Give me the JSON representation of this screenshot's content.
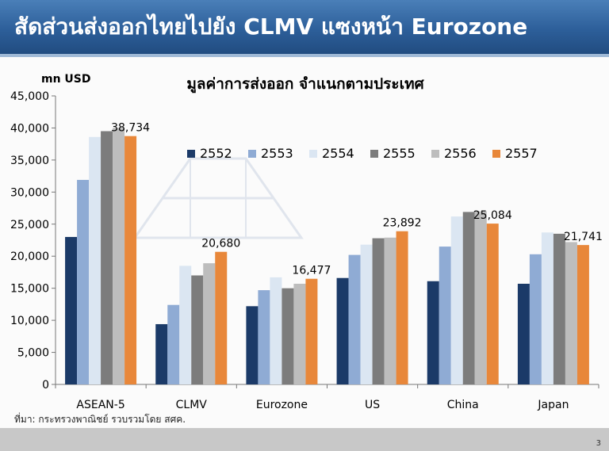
{
  "header": {
    "title": "สัดส่วนส่งออกไทยไปยัง CLMV แซงหน้า Eurozone"
  },
  "footer": {
    "source": "ที่มา: กระทรวงพาณิชย์ รวบรวมโดย สศค.",
    "page_number": "3"
  },
  "colors": {
    "header_bg": "#2d5f9a",
    "series": [
      "#1b3a68",
      "#8fabd4",
      "#dbe6f2",
      "#7c7c7c",
      "#bdbdbd",
      "#e8873a"
    ]
  },
  "chart_data": {
    "type": "bar",
    "title": "มูลค่าการส่งออก จำแนกตามประเทศ",
    "ylabel": "mn USD",
    "xlabel": "",
    "ylim": [
      0,
      45000
    ],
    "yticks": [
      0,
      5000,
      10000,
      15000,
      20000,
      25000,
      30000,
      35000,
      40000,
      45000
    ],
    "ytick_labels": [
      "0",
      "5,000",
      "10,000",
      "15,000",
      "20,000",
      "25,000",
      "30,000",
      "35,000",
      "40,000",
      "45,000"
    ],
    "grid": false,
    "legend_position": "top-center",
    "categories": [
      "ASEAN-5",
      "CLMV",
      "Eurozone",
      "US",
      "China",
      "Japan"
    ],
    "series": [
      {
        "name": "2552",
        "values": [
          23000,
          9400,
          12200,
          16600,
          16100,
          15700
        ]
      },
      {
        "name": "2553",
        "values": [
          31900,
          12400,
          14700,
          20200,
          21500,
          20300
        ]
      },
      {
        "name": "2554",
        "values": [
          38600,
          18500,
          16700,
          21800,
          26200,
          23700
        ]
      },
      {
        "name": "2555",
        "values": [
          39500,
          17000,
          15000,
          22800,
          26900,
          23500
        ]
      },
      {
        "name": "2556",
        "values": [
          40000,
          18900,
          15700,
          22900,
          27000,
          22200
        ]
      },
      {
        "name": "2557",
        "values": [
          38734,
          20680,
          16477,
          23892,
          25084,
          21741
        ]
      }
    ],
    "data_labels": [
      "38,734",
      "20,680",
      "16,477",
      "23,892",
      "25,084",
      "21,741"
    ]
  }
}
